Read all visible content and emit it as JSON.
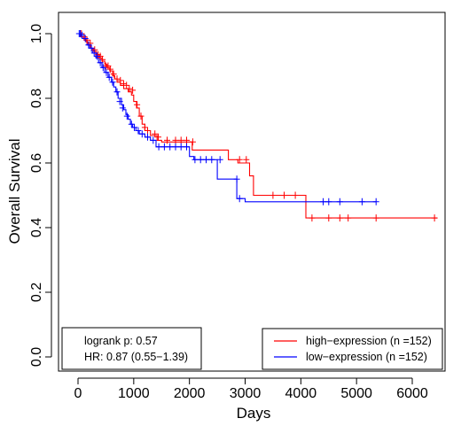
{
  "chart_data": {
    "type": "line",
    "subtype": "kaplan-meier",
    "title": "",
    "xlabel": "Days",
    "ylabel": "Overall Survival",
    "xlim": [
      0,
      6500
    ],
    "ylim": [
      0,
      1.0
    ],
    "xticks": [
      0,
      1000,
      2000,
      3000,
      4000,
      5000,
      6000
    ],
    "yticks": [
      0.0,
      0.2,
      0.4,
      0.6,
      0.8,
      1.0
    ],
    "xtick_labels": [
      "0",
      "1000",
      "2000",
      "3000",
      "4000",
      "5000",
      "6000"
    ],
    "ytick_labels": [
      "0.0",
      "0.2",
      "0.4",
      "0.6",
      "0.8",
      "1.0"
    ],
    "grid": false,
    "stats_box": {
      "position": "bottom-left",
      "lines": [
        "logrank p: 0.57",
        "HR: 0.87 (0.55−1.39)"
      ]
    },
    "legend": {
      "position": "bottom-right",
      "entries": [
        {
          "label": "high−expression (n =152)",
          "color": "#ff0000"
        },
        {
          "label": "low−expression (n =152)",
          "color": "#0000ff"
        }
      ]
    },
    "series": [
      {
        "name": "high−expression (n =152)",
        "color": "#ff0000",
        "steps": [
          [
            0,
            1.0
          ],
          [
            50,
            0.99
          ],
          [
            100,
            0.985
          ],
          [
            140,
            0.975
          ],
          [
            180,
            0.965
          ],
          [
            230,
            0.955
          ],
          [
            280,
            0.945
          ],
          [
            330,
            0.935
          ],
          [
            380,
            0.925
          ],
          [
            430,
            0.915
          ],
          [
            480,
            0.905
          ],
          [
            520,
            0.895
          ],
          [
            570,
            0.885
          ],
          [
            620,
            0.87
          ],
          [
            660,
            0.86
          ],
          [
            700,
            0.85
          ],
          [
            760,
            0.84
          ],
          [
            820,
            0.83
          ],
          [
            900,
            0.82
          ],
          [
            960,
            0.81
          ],
          [
            1000,
            0.79
          ],
          [
            1050,
            0.77
          ],
          [
            1100,
            0.745
          ],
          [
            1150,
            0.72
          ],
          [
            1200,
            0.7
          ],
          [
            1300,
            0.685
          ],
          [
            1420,
            0.67
          ],
          [
            1500,
            0.665
          ],
          [
            2050,
            0.64
          ],
          [
            2700,
            0.61
          ],
          [
            2870,
            0.6
          ],
          [
            3080,
            0.56
          ],
          [
            3150,
            0.5
          ],
          [
            4090,
            0.43
          ],
          [
            6450,
            0.43
          ]
        ],
        "censors": [
          [
            60,
            1.0
          ],
          [
            110,
            0.99
          ],
          [
            160,
            0.98
          ],
          [
            220,
            0.97
          ],
          [
            300,
            0.95
          ],
          [
            360,
            0.935
          ],
          [
            400,
            0.93
          ],
          [
            440,
            0.92
          ],
          [
            500,
            0.9
          ],
          [
            540,
            0.9
          ],
          [
            580,
            0.89
          ],
          [
            640,
            0.875
          ],
          [
            700,
            0.86
          ],
          [
            760,
            0.855
          ],
          [
            820,
            0.845
          ],
          [
            870,
            0.84
          ],
          [
            920,
            0.83
          ],
          [
            980,
            0.825
          ],
          [
            1060,
            0.78
          ],
          [
            1130,
            0.745
          ],
          [
            1200,
            0.71
          ],
          [
            1250,
            0.7
          ],
          [
            1380,
            0.69
          ],
          [
            1440,
            0.68
          ],
          [
            1600,
            0.67
          ],
          [
            1750,
            0.67
          ],
          [
            1850,
            0.67
          ],
          [
            1950,
            0.67
          ],
          [
            2060,
            0.665
          ],
          [
            2900,
            0.61
          ],
          [
            3020,
            0.61
          ],
          [
            3500,
            0.5
          ],
          [
            3700,
            0.5
          ],
          [
            3900,
            0.5
          ],
          [
            4200,
            0.43
          ],
          [
            4500,
            0.43
          ],
          [
            4700,
            0.43
          ],
          [
            4850,
            0.43
          ],
          [
            5350,
            0.43
          ],
          [
            6400,
            0.43
          ]
        ]
      },
      {
        "name": "low−expression (n =152)",
        "color": "#0000ff",
        "steps": [
          [
            0,
            1.0
          ],
          [
            60,
            0.99
          ],
          [
            110,
            0.98
          ],
          [
            160,
            0.965
          ],
          [
            210,
            0.955
          ],
          [
            260,
            0.94
          ],
          [
            320,
            0.925
          ],
          [
            370,
            0.91
          ],
          [
            430,
            0.895
          ],
          [
            480,
            0.88
          ],
          [
            540,
            0.865
          ],
          [
            600,
            0.85
          ],
          [
            640,
            0.835
          ],
          [
            680,
            0.82
          ],
          [
            720,
            0.8
          ],
          [
            780,
            0.78
          ],
          [
            820,
            0.765
          ],
          [
            860,
            0.75
          ],
          [
            900,
            0.735
          ],
          [
            940,
            0.72
          ],
          [
            980,
            0.71
          ],
          [
            1040,
            0.7
          ],
          [
            1100,
            0.69
          ],
          [
            1200,
            0.68
          ],
          [
            1300,
            0.67
          ],
          [
            1400,
            0.65
          ],
          [
            2000,
            0.62
          ],
          [
            2080,
            0.61
          ],
          [
            2500,
            0.55
          ],
          [
            2850,
            0.49
          ],
          [
            3000,
            0.48
          ],
          [
            5350,
            0.48
          ]
        ],
        "censors": [
          [
            20,
            1.0
          ],
          [
            40,
            1.0
          ],
          [
            70,
            0.995
          ],
          [
            130,
            0.985
          ],
          [
            190,
            0.965
          ],
          [
            240,
            0.955
          ],
          [
            290,
            0.94
          ],
          [
            340,
            0.93
          ],
          [
            400,
            0.91
          ],
          [
            450,
            0.895
          ],
          [
            510,
            0.88
          ],
          [
            560,
            0.865
          ],
          [
            620,
            0.85
          ],
          [
            700,
            0.82
          ],
          [
            750,
            0.79
          ],
          [
            800,
            0.77
          ],
          [
            880,
            0.745
          ],
          [
            960,
            0.72
          ],
          [
            1010,
            0.71
          ],
          [
            1080,
            0.7
          ],
          [
            1150,
            0.69
          ],
          [
            1250,
            0.68
          ],
          [
            1350,
            0.67
          ],
          [
            1450,
            0.65
          ],
          [
            1550,
            0.65
          ],
          [
            1650,
            0.65
          ],
          [
            1750,
            0.65
          ],
          [
            1850,
            0.65
          ],
          [
            1950,
            0.65
          ],
          [
            2100,
            0.61
          ],
          [
            2200,
            0.61
          ],
          [
            2300,
            0.61
          ],
          [
            2400,
            0.61
          ],
          [
            2550,
            0.61
          ],
          [
            2850,
            0.55
          ],
          [
            2900,
            0.49
          ],
          [
            4400,
            0.48
          ],
          [
            4500,
            0.48
          ],
          [
            4700,
            0.48
          ],
          [
            5100,
            0.48
          ],
          [
            5350,
            0.48
          ]
        ]
      }
    ]
  }
}
